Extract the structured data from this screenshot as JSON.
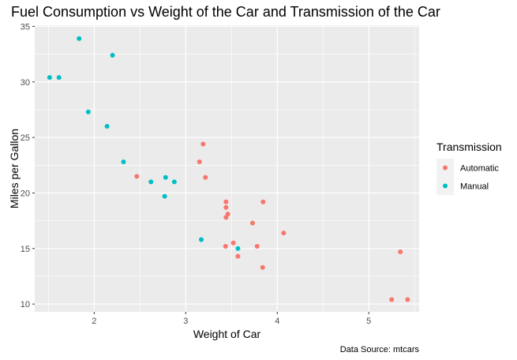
{
  "chart_data": {
    "type": "scatter",
    "title": "Fuel Consumption vs Weight of the Car and Transmission of the Car",
    "xlabel": "Weight of Car",
    "ylabel": "Miles per Gallon",
    "caption": "Data Source: mtcars",
    "xlim": [
      1.35,
      5.55
    ],
    "ylim": [
      9.3,
      35.1
    ],
    "x_ticks": [
      2,
      3,
      4,
      5
    ],
    "y_ticks": [
      10,
      15,
      20,
      25,
      30,
      35
    ],
    "grid": true,
    "legend": {
      "title": "Transmission",
      "placement": "right"
    },
    "series": [
      {
        "name": "Automatic",
        "color": "#F8766D",
        "x": [
          3.215,
          3.44,
          3.46,
          3.57,
          3.19,
          3.15,
          3.44,
          3.44,
          4.07,
          3.73,
          3.78,
          5.25,
          5.424,
          5.345,
          2.465,
          3.52,
          3.435,
          3.84,
          3.845
        ],
        "y": [
          21.4,
          18.7,
          18.1,
          14.3,
          24.4,
          22.8,
          19.2,
          17.8,
          16.4,
          17.3,
          15.2,
          10.4,
          10.4,
          14.7,
          21.5,
          15.5,
          15.2,
          13.3,
          19.2
        ]
      },
      {
        "name": "Manual",
        "color": "#00BFC4",
        "x": [
          2.62,
          2.875,
          2.32,
          2.2,
          1.615,
          1.835,
          1.935,
          2.14,
          1.513,
          3.17,
          2.77,
          3.57,
          2.78
        ],
        "y": [
          21.0,
          21.0,
          22.8,
          32.4,
          30.4,
          33.9,
          27.3,
          26.0,
          30.4,
          15.8,
          19.7,
          15.0,
          21.4
        ]
      }
    ]
  }
}
